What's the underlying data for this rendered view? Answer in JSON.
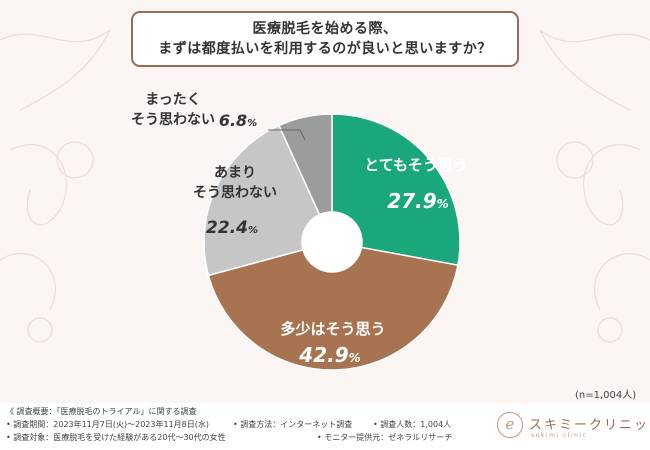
{
  "title": {
    "line1": "医療脱毛を始める際、",
    "line2": "まずは都度払いを利用するのが良いと思いますか？"
  },
  "chart_data": {
    "type": "pie",
    "variant": "donut",
    "title": "医療脱毛を始める際、まずは都度払いを利用するのが良いと思いますか？",
    "slices": [
      {
        "label": [
          "とてもそう思う"
        ],
        "value": 27.9,
        "display": "27.9",
        "color": "#1ba77c",
        "text_color": "#ffffff"
      },
      {
        "label": [
          "多少はそう思う"
        ],
        "value": 42.9,
        "display": "42.9",
        "color": "#a87350",
        "text_color": "#ffffff"
      },
      {
        "label": [
          "あまり",
          "そう思わない"
        ],
        "value": 22.4,
        "display": "22.4",
        "color": "#c6c6c6",
        "text_color": "#333333"
      },
      {
        "label": [
          "まったく",
          "そう思わない"
        ],
        "value": 6.8,
        "display": "6.8",
        "color": "#9c9c9c",
        "text_color": "#333333"
      }
    ],
    "unit": "%",
    "sample": "(n=1,004人)"
  },
  "footer": {
    "overview": "《 調査概要：「医療脱毛のトライアル」に関する調査",
    "period": "• 調査期間：2023年11月7日(火)～2023年11月8日(水)",
    "method": "• 調査方法：インターネット調査",
    "count": "• 調査人数：1,004人",
    "target": "• 調査対象：医療脱毛を受けた経験がある20代～30代の女性",
    "provider": "• モニター提供元：ゼネラルリサーチ"
  },
  "logo": {
    "mark": "ℯ",
    "name": "スキミークリニック",
    "sub": "sukimi clinic"
  },
  "colors": {
    "border": "#9a6a52",
    "background": "#fbf6f3"
  }
}
